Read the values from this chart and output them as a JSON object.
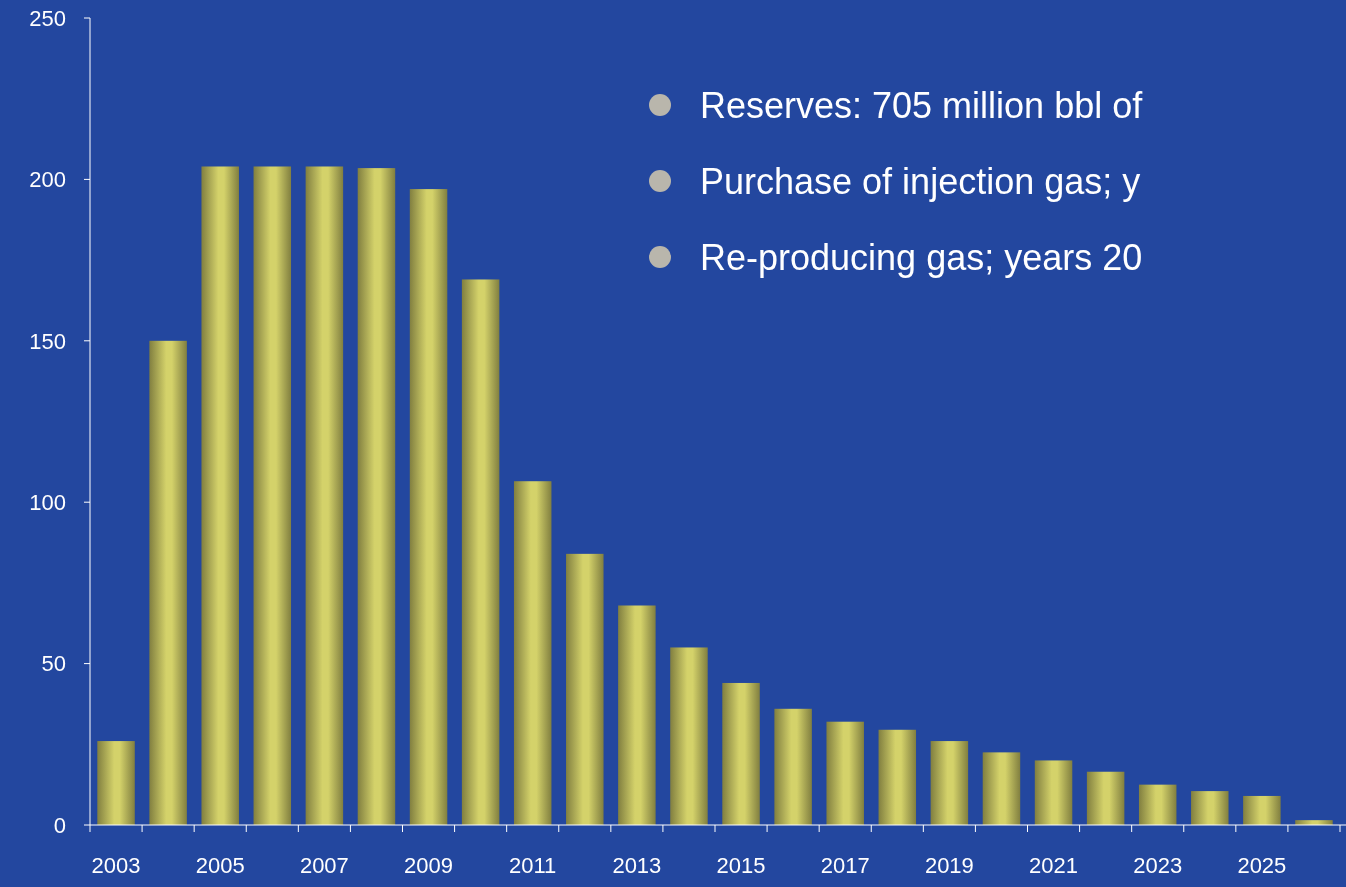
{
  "chart_data": {
    "type": "bar",
    "categories": [
      "2003",
      null,
      "2005",
      null,
      "2007",
      null,
      "2009",
      null,
      "2011",
      null,
      "2013",
      null,
      "2015",
      null,
      "2017",
      null,
      "2019",
      null,
      "2021",
      null,
      "2023",
      null,
      "2025",
      null
    ],
    "values": [
      26,
      150,
      204,
      204,
      204,
      203.5,
      197,
      169,
      106.5,
      84,
      68,
      55,
      44,
      36,
      32,
      29.5,
      26,
      22.5,
      20,
      16.5,
      12.5,
      10.5,
      9,
      1.5
    ],
    "color": "#d4d26a",
    "ylim": [
      0,
      250
    ],
    "yticks": [
      0,
      50,
      100,
      150,
      200,
      250
    ],
    "annotations": [
      "Reserves: 705 million bbl of",
      "Purchase of injection gas; y",
      "Re-producing gas; years 20"
    ]
  }
}
